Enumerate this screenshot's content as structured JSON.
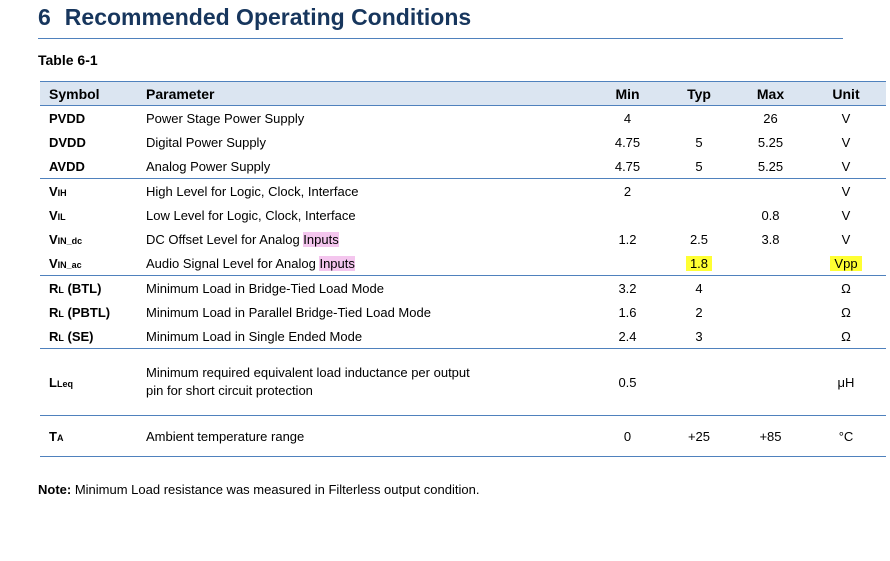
{
  "heading": {
    "number": "6",
    "title": "Recommended Operating Conditions"
  },
  "table_caption": "Table 6-1",
  "columns": [
    "Symbol",
    "Parameter",
    "Min",
    "Typ",
    "Max",
    "Unit"
  ],
  "rows": [
    {
      "symbol": "PVDD",
      "sub": "",
      "parameter": "Power Stage Power Supply",
      "min": "4",
      "typ": "",
      "max": "26",
      "unit": "V"
    },
    {
      "symbol": "DVDD",
      "sub": "",
      "parameter": "Digital Power Supply",
      "min": "4.75",
      "typ": "5",
      "max": "5.25",
      "unit": "V"
    },
    {
      "symbol": "AVDD",
      "sub": "",
      "parameter": "Analog Power Supply",
      "min": "4.75",
      "typ": "5",
      "max": "5.25",
      "unit": "V"
    },
    {
      "symbol": "V",
      "sub": "IH",
      "parameter": "High Level for Logic, Clock, Interface",
      "min": "2",
      "typ": "",
      "max": "",
      "unit": "V"
    },
    {
      "symbol": "V",
      "sub": "IL",
      "parameter": "Low Level for Logic, Clock, Interface",
      "min": "",
      "typ": "",
      "max": "0.8",
      "unit": "V"
    },
    {
      "symbol": "V",
      "sub": "IN_dc",
      "parameter": "DC Offset Level for Analog ",
      "param_hl": "Inputs",
      "min": "1.2",
      "typ": "2.5",
      "max": "3.8",
      "unit": "V"
    },
    {
      "symbol": "V",
      "sub": "IN_ac",
      "parameter": "Audio Signal Level for Analog ",
      "param_hl": "Inputs",
      "min": "",
      "typ": "1.8",
      "max": "",
      "unit": "Vpp"
    },
    {
      "symbol": "R",
      "sub": "L",
      "symbol_suffix": " (BTL)",
      "parameter": "Minimum Load in Bridge-Tied Load Mode",
      "min": "3.2",
      "typ": "4",
      "max": "",
      "unit": "Ω"
    },
    {
      "symbol": "R",
      "sub": "L",
      "symbol_suffix": " (PBTL)",
      "parameter": "Minimum Load in Parallel Bridge-Tied Load Mode",
      "min": "1.6",
      "typ": "2",
      "max": "",
      "unit": "Ω"
    },
    {
      "symbol": "R",
      "sub": "L",
      "symbol_suffix": " (SE)",
      "parameter": "Minimum Load in Single Ended Mode",
      "min": "2.4",
      "typ": "3",
      "max": "",
      "unit": "Ω"
    },
    {
      "symbol": "L",
      "sub": "Leq",
      "parameter": "Minimum required equivalent load inductance per output pin for short circuit protection",
      "min": "0.5",
      "typ": "",
      "max": "",
      "unit": "μH"
    },
    {
      "symbol": "T",
      "sub": "A",
      "parameter": "Ambient temperature range",
      "min": "0",
      "typ": "+25",
      "max": "+85",
      "unit": "°C"
    }
  ],
  "note": {
    "label": "Note:",
    "text": " Minimum Load resistance was measured in Filterless output condition."
  },
  "colors": {
    "heading": "#17365d",
    "rule": "#4f81bd",
    "header_bg": "#dbe5f1",
    "highlight_yellow": "#ffff33",
    "highlight_pink": "#f4c6ee"
  }
}
